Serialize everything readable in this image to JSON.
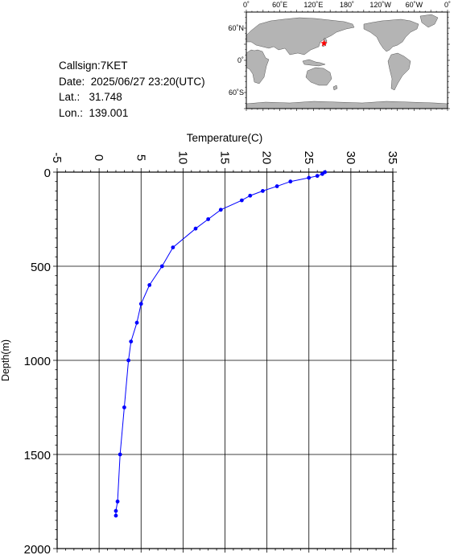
{
  "info": {
    "callsign": "Callsign:7KET",
    "date": "Date:  2025/06/27 23:20(UTC)",
    "lat": "Lat.:   31.748",
    "lon": "Lon.:  139.001"
  },
  "map": {
    "lon_labels": [
      "0˚",
      "60˚E",
      "120˚E",
      "180˚",
      "120˚W",
      "60˚W",
      "0˚"
    ],
    "lat_labels": [
      "60˚N",
      "0˚",
      "60˚S"
    ],
    "station": {
      "lat": 31.748,
      "lon": 139.001,
      "marker": "star-icon",
      "color": "#ff0000"
    },
    "land_color": "#b4b4b4",
    "ocean_color": "#ffffff"
  },
  "chart_data": {
    "type": "line",
    "title": "",
    "xlabel": "Temperature(C)",
    "ylabel": "Depth(m)",
    "xlim": [
      -5,
      35
    ],
    "ylim": [
      0,
      2000
    ],
    "y_inverted": true,
    "x_axis_position": "top",
    "grid": true,
    "xticks": [
      -5,
      0,
      5,
      10,
      15,
      20,
      25,
      30,
      35
    ],
    "yticks": [
      0,
      500,
      1000,
      1500,
      2000
    ],
    "series": [
      {
        "color": "#0000ff",
        "x": [
          26.9,
          26.6,
          26.0,
          25.0,
          22.8,
          21.2,
          19.5,
          18.0,
          17.0,
          14.5,
          13.0,
          11.5,
          8.8,
          7.5,
          6.0,
          5.0,
          4.5,
          3.8,
          3.5,
          3.0,
          2.5,
          2.2,
          2.0,
          2.0
        ],
        "y": [
          0,
          10,
          20,
          30,
          50,
          75,
          100,
          125,
          150,
          200,
          250,
          300,
          400,
          500,
          600,
          700,
          800,
          900,
          1000,
          1250,
          1500,
          1750,
          1800,
          1825
        ]
      }
    ]
  }
}
